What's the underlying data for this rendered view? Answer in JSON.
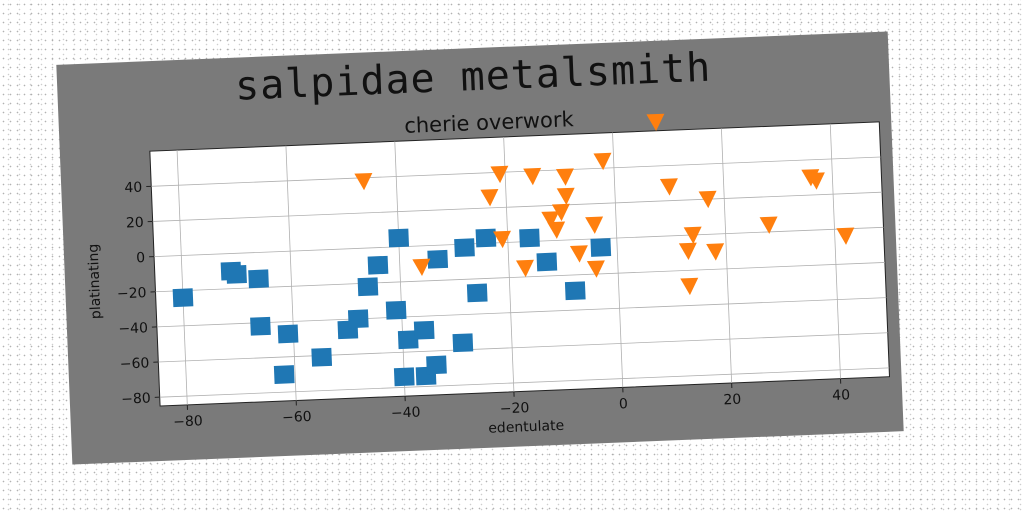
{
  "title": "salpidae metalsmith",
  "chart_data": {
    "type": "scatter",
    "title": "cherie overwork",
    "xlabel": "edentulate",
    "ylabel": "platinating",
    "xlim": [
      -85,
      49
    ],
    "ylim": [
      -85,
      60
    ],
    "xticks": [
      -80,
      -60,
      -40,
      -20,
      0,
      20,
      40
    ],
    "yticks": [
      -80,
      -60,
      -40,
      -20,
      0,
      20,
      40
    ],
    "grid": true,
    "series": [
      {
        "marker": "square",
        "color": "#1f77b4",
        "points": [
          [
            -80,
            -24
          ],
          [
            -71,
            -10
          ],
          [
            -70,
            -12
          ],
          [
            -66,
            -15
          ],
          [
            -66,
            -42
          ],
          [
            -61,
            -47
          ],
          [
            -62,
            -70
          ],
          [
            -55,
            -61
          ],
          [
            -50,
            -46
          ],
          [
            -48,
            -40
          ],
          [
            -46,
            -22
          ],
          [
            -44,
            -10
          ],
          [
            -40,
            5
          ],
          [
            -41,
            -36
          ],
          [
            -39,
            -53
          ],
          [
            -40,
            -74
          ],
          [
            -36,
            -74
          ],
          [
            -36,
            -48
          ],
          [
            -34,
            -68
          ],
          [
            -33,
            -8
          ],
          [
            -29,
            -56
          ],
          [
            -28,
            -2
          ],
          [
            -24,
            3
          ],
          [
            -26,
            -28
          ],
          [
            -16,
            2
          ],
          [
            -13,
            -12
          ],
          [
            -8,
            -29
          ],
          [
            -3,
            -5
          ]
        ]
      },
      {
        "marker": "triangle-down",
        "color": "#ff7f0e",
        "points": [
          [
            8,
            65
          ],
          [
            -46,
            38
          ],
          [
            -21,
            39
          ],
          [
            -15,
            37
          ],
          [
            -9,
            36
          ],
          [
            -2,
            44
          ],
          [
            -23,
            26
          ],
          [
            -9,
            25
          ],
          [
            -10,
            16
          ],
          [
            -12,
            12
          ],
          [
            -11,
            6
          ],
          [
            -4,
            8
          ],
          [
            -21,
            2
          ],
          [
            -36,
            -12
          ],
          [
            -17,
            -15
          ],
          [
            -7,
            -8
          ],
          [
            -4,
            -17
          ],
          [
            10,
            28
          ],
          [
            17,
            20
          ],
          [
            14,
            0
          ],
          [
            13,
            -9
          ],
          [
            18,
            -10
          ],
          [
            28,
            4
          ],
          [
            36,
            30
          ],
          [
            37,
            28
          ],
          [
            42,
            -4
          ],
          [
            13,
            -29
          ]
        ]
      }
    ]
  }
}
